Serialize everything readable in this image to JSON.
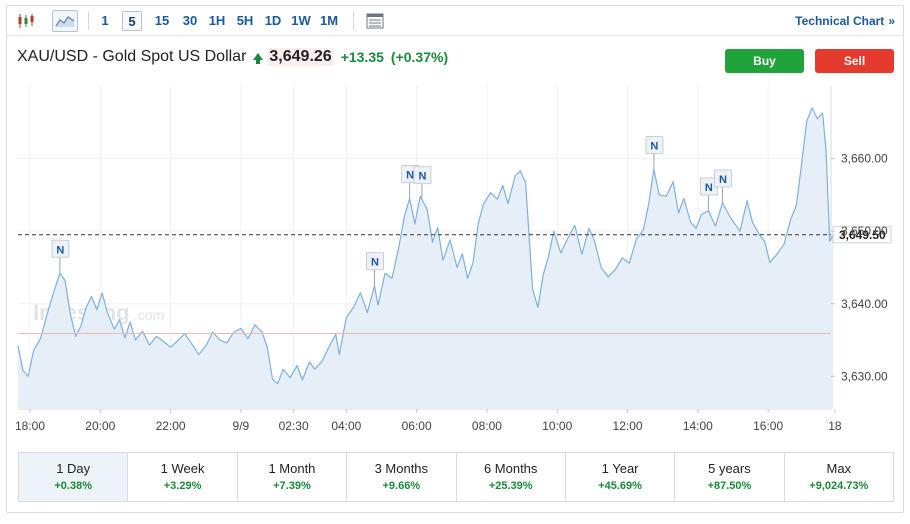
{
  "toolbar": {
    "timeframes": [
      "1",
      "5",
      "15",
      "30",
      "1H",
      "5H",
      "1D",
      "1W",
      "1M"
    ],
    "active_timeframe": "5",
    "technical_chart_label": "Technical Chart",
    "technical_chart_chevron": "»"
  },
  "quote": {
    "name": "XAU/USD - Gold Spot US Dollar",
    "price": "3,649.26",
    "change": "+13.35",
    "change_pct": "(+0.37%)"
  },
  "buttons": {
    "buy": "Buy",
    "sell": "Sell"
  },
  "watermark": {
    "brand": "Investing",
    "suffix": ".com"
  },
  "colors": {
    "line": "#7fb1dc",
    "area": "#e6eef8",
    "up": "#1a8a3a",
    "buy": "#20a33a",
    "sell": "#e53b2f",
    "prev_close": "#f2b8b8"
  },
  "chart_data": {
    "type": "area",
    "title": "",
    "xlabel": "",
    "ylabel": "",
    "ylim": [
      3625.5,
      3670.0
    ],
    "grid": true,
    "x_ticks": [
      {
        "t": 0.0,
        "label": "18:00"
      },
      {
        "t": 2.0,
        "label": "20:00"
      },
      {
        "t": 4.0,
        "label": "22:00"
      },
      {
        "t": 6.0,
        "label": "9/9"
      },
      {
        "t": 7.5,
        "label": "02:30"
      },
      {
        "t": 9.0,
        "label": "04:00"
      },
      {
        "t": 11.0,
        "label": "06:00"
      },
      {
        "t": 13.0,
        "label": "08:00"
      },
      {
        "t": 15.0,
        "label": "10:00"
      },
      {
        "t": 17.0,
        "label": "12:00"
      },
      {
        "t": 19.0,
        "label": "14:00"
      },
      {
        "t": 21.0,
        "label": "16:00"
      },
      {
        "t": 22.9,
        "label": "18"
      }
    ],
    "y_ticks": [
      3630.0,
      3640.0,
      3650.0,
      3660.0
    ],
    "y_tick_labels": [
      "3,630.00",
      "3,640.00",
      "3,650.00",
      "3,660.00"
    ],
    "current_value": 3649.5,
    "current_label": "3,649.50",
    "previous_close": 3635.9,
    "series": [
      {
        "points": [
          [
            -0.35,
            3634.2
          ],
          [
            -0.2,
            3630.8
          ],
          [
            -0.05,
            3630.0
          ],
          [
            0.1,
            3633.5
          ],
          [
            0.3,
            3635.2
          ],
          [
            0.5,
            3638.8
          ],
          [
            0.7,
            3642.0
          ],
          [
            0.85,
            3644.2
          ],
          [
            1.0,
            3643.2
          ],
          [
            1.15,
            3638.5
          ],
          [
            1.3,
            3635.5
          ],
          [
            1.45,
            3637.0
          ],
          [
            1.6,
            3639.5
          ],
          [
            1.75,
            3641.0
          ],
          [
            1.9,
            3639.2
          ],
          [
            2.05,
            3641.5
          ],
          [
            2.2,
            3638.8
          ],
          [
            2.4,
            3636.5
          ],
          [
            2.55,
            3637.8
          ],
          [
            2.7,
            3635.3
          ],
          [
            2.85,
            3637.5
          ],
          [
            3.0,
            3635.0
          ],
          [
            3.2,
            3636.2
          ],
          [
            3.4,
            3634.3
          ],
          [
            3.6,
            3635.5
          ],
          [
            3.8,
            3634.8
          ],
          [
            4.0,
            3634.0
          ],
          [
            4.2,
            3634.9
          ],
          [
            4.4,
            3635.9
          ],
          [
            4.6,
            3634.5
          ],
          [
            4.8,
            3633.0
          ],
          [
            5.0,
            3634.2
          ],
          [
            5.2,
            3636.1
          ],
          [
            5.4,
            3635.0
          ],
          [
            5.6,
            3634.6
          ],
          [
            5.8,
            3636.1
          ],
          [
            6.0,
            3636.6
          ],
          [
            6.2,
            3635.2
          ],
          [
            6.4,
            3637.1
          ],
          [
            6.6,
            3636.1
          ],
          [
            6.75,
            3634.0
          ],
          [
            6.9,
            3629.6
          ],
          [
            7.05,
            3629.0
          ],
          [
            7.2,
            3631.0
          ],
          [
            7.4,
            3629.8
          ],
          [
            7.6,
            3631.5
          ],
          [
            7.75,
            3629.5
          ],
          [
            7.95,
            3632.0
          ],
          [
            8.1,
            3631.0
          ],
          [
            8.3,
            3632.0
          ],
          [
            8.5,
            3634.0
          ],
          [
            8.7,
            3635.8
          ],
          [
            8.8,
            3633.0
          ],
          [
            9.0,
            3638.1
          ],
          [
            9.2,
            3639.5
          ],
          [
            9.4,
            3641.5
          ],
          [
            9.6,
            3638.8
          ],
          [
            9.8,
            3642.5
          ],
          [
            9.9,
            3639.8
          ],
          [
            10.1,
            3644.2
          ],
          [
            10.3,
            3643.5
          ],
          [
            10.5,
            3648.0
          ],
          [
            10.65,
            3652.0
          ],
          [
            10.8,
            3654.5
          ],
          [
            10.95,
            3651.0
          ],
          [
            11.1,
            3654.8
          ],
          [
            11.3,
            3653.0
          ],
          [
            11.45,
            3648.5
          ],
          [
            11.6,
            3650.5
          ],
          [
            11.75,
            3646.0
          ],
          [
            11.95,
            3648.8
          ],
          [
            12.15,
            3645.0
          ],
          [
            12.3,
            3646.9
          ],
          [
            12.45,
            3643.5
          ],
          [
            12.6,
            3645.6
          ],
          [
            12.75,
            3651.0
          ],
          [
            12.9,
            3653.7
          ],
          [
            13.1,
            3655.3
          ],
          [
            13.3,
            3654.4
          ],
          [
            13.45,
            3656.3
          ],
          [
            13.6,
            3653.8
          ],
          [
            13.8,
            3657.6
          ],
          [
            13.95,
            3658.3
          ],
          [
            14.1,
            3656.7
          ],
          [
            14.3,
            3642.0
          ],
          [
            14.45,
            3639.5
          ],
          [
            14.6,
            3644.0
          ],
          [
            14.75,
            3646.5
          ],
          [
            14.9,
            3650.0
          ],
          [
            15.1,
            3647.0
          ],
          [
            15.3,
            3649.0
          ],
          [
            15.5,
            3650.8
          ],
          [
            15.7,
            3646.8
          ],
          [
            15.9,
            3650.4
          ],
          [
            16.05,
            3648.8
          ],
          [
            16.25,
            3645.0
          ],
          [
            16.45,
            3643.7
          ],
          [
            16.65,
            3644.7
          ],
          [
            16.85,
            3646.3
          ],
          [
            17.05,
            3645.6
          ],
          [
            17.25,
            3648.9
          ],
          [
            17.45,
            3650.2
          ],
          [
            17.6,
            3653.7
          ],
          [
            17.75,
            3658.5
          ],
          [
            17.9,
            3655.0
          ],
          [
            18.1,
            3654.8
          ],
          [
            18.3,
            3656.8
          ],
          [
            18.45,
            3652.5
          ],
          [
            18.6,
            3654.5
          ],
          [
            18.8,
            3651.2
          ],
          [
            18.95,
            3650.4
          ],
          [
            19.1,
            3652.3
          ],
          [
            19.3,
            3652.8
          ],
          [
            19.5,
            3650.7
          ],
          [
            19.7,
            3653.9
          ],
          [
            19.9,
            3652.1
          ],
          [
            20.05,
            3651.0
          ],
          [
            20.2,
            3650.0
          ],
          [
            20.4,
            3654.2
          ],
          [
            20.55,
            3651.3
          ],
          [
            20.75,
            3649.5
          ],
          [
            20.9,
            3648.6
          ],
          [
            21.05,
            3645.7
          ],
          [
            21.25,
            3646.8
          ],
          [
            21.45,
            3648.2
          ],
          [
            21.65,
            3651.8
          ],
          [
            21.8,
            3653.5
          ],
          [
            21.95,
            3659.2
          ],
          [
            22.1,
            3665.2
          ],
          [
            22.25,
            3667.0
          ],
          [
            22.4,
            3665.5
          ],
          [
            22.55,
            3666.3
          ],
          [
            22.65,
            3661.0
          ],
          [
            22.75,
            3648.6
          ],
          [
            22.85,
            3649.5
          ]
        ]
      }
    ],
    "news_markers": [
      {
        "t": 0.85,
        "label": "N"
      },
      {
        "t": 9.8,
        "label": "N"
      },
      {
        "t": 10.8,
        "label": "N"
      },
      {
        "t": 11.15,
        "label": "N"
      },
      {
        "t": 17.75,
        "label": "N"
      },
      {
        "t": 19.3,
        "label": "N"
      },
      {
        "t": 19.7,
        "label": "N"
      }
    ]
  },
  "periods": [
    {
      "label": "1 Day",
      "change": "+0.38%"
    },
    {
      "label": "1 Week",
      "change": "+3.29%"
    },
    {
      "label": "1 Month",
      "change": "+7.39%"
    },
    {
      "label": "3 Months",
      "change": "+9.66%"
    },
    {
      "label": "6 Months",
      "change": "+25.39%"
    },
    {
      "label": "1 Year",
      "change": "+45.69%"
    },
    {
      "label": "5 years",
      "change": "+87.50%"
    },
    {
      "label": "Max",
      "change": "+9,024.73%"
    }
  ],
  "active_period": "1 Day"
}
